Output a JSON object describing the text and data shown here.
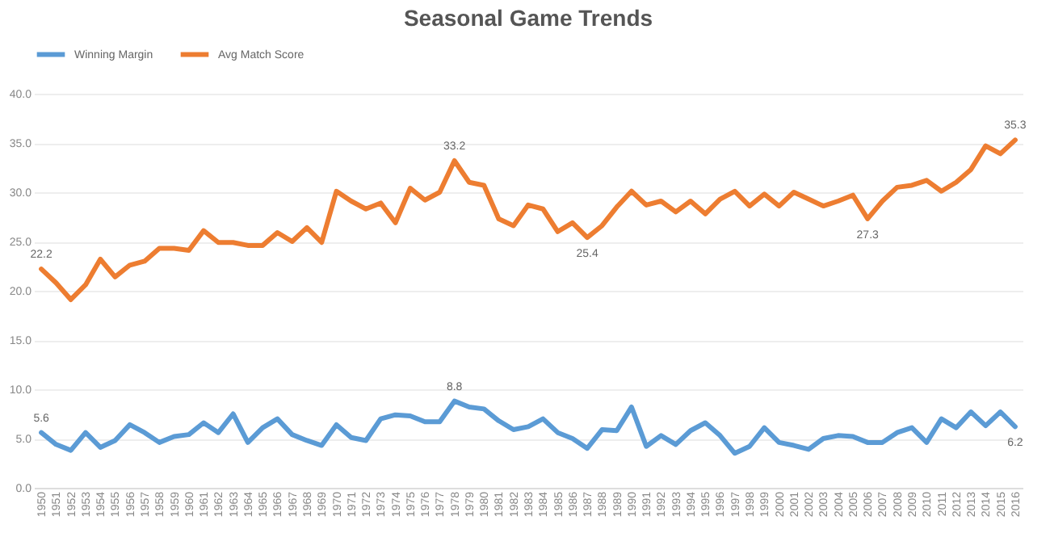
{
  "chart_data": {
    "type": "line",
    "title": "Seasonal Game Trends",
    "categories": [
      "1950",
      "1951",
      "1952",
      "1953",
      "1954",
      "1955",
      "1956",
      "1957",
      "1958",
      "1959",
      "1960",
      "1961",
      "1962",
      "1963",
      "1964",
      "1965",
      "1966",
      "1967",
      "1968",
      "1969",
      "1970",
      "1971",
      "1972",
      "1973",
      "1974",
      "1975",
      "1976",
      "1977",
      "1978",
      "1979",
      "1980",
      "1981",
      "1982",
      "1983",
      "1984",
      "1985",
      "1986",
      "1987",
      "1988",
      "1989",
      "1990",
      "1991",
      "1992",
      "1993",
      "1994",
      "1995",
      "1996",
      "1997",
      "1998",
      "1999",
      "2000",
      "2001",
      "2002",
      "2003",
      "2004",
      "2005",
      "2006",
      "2007",
      "2008",
      "2009",
      "2010",
      "2011",
      "2012",
      "2013",
      "2014",
      "2015",
      "2016"
    ],
    "series": [
      {
        "name": "Winning Margin",
        "color": "#5b9bd5",
        "values": [
          5.6,
          4.4,
          3.8,
          5.6,
          4.1,
          4.8,
          6.4,
          5.6,
          4.6,
          5.2,
          5.4,
          6.6,
          5.6,
          7.5,
          4.6,
          6.1,
          7.0,
          5.4,
          4.8,
          4.3,
          6.4,
          5.1,
          4.8,
          7.0,
          7.4,
          7.3,
          6.7,
          6.7,
          8.8,
          8.2,
          8.0,
          6.8,
          5.9,
          6.2,
          7.0,
          5.6,
          5.0,
          4.0,
          5.9,
          5.8,
          8.2,
          4.2,
          5.3,
          4.4,
          5.8,
          6.6,
          5.3,
          3.5,
          4.2,
          6.1,
          4.6,
          4.3,
          3.9,
          5.0,
          5.3,
          5.2,
          4.6,
          4.6,
          5.6,
          6.1,
          4.6,
          7.0,
          6.1,
          7.7,
          6.3,
          7.7,
          6.2
        ],
        "value_labels": [
          "5.6",
          null,
          null,
          null,
          null,
          null,
          null,
          null,
          null,
          null,
          null,
          null,
          null,
          null,
          null,
          null,
          null,
          null,
          null,
          null,
          null,
          null,
          null,
          null,
          null,
          null,
          null,
          null,
          "8.8",
          null,
          null,
          null,
          null,
          null,
          null,
          null,
          null,
          null,
          null,
          null,
          null,
          null,
          null,
          null,
          null,
          null,
          null,
          null,
          null,
          null,
          null,
          null,
          null,
          null,
          null,
          null,
          null,
          null,
          null,
          null,
          null,
          null,
          null,
          null,
          null,
          null,
          "6.2"
        ]
      },
      {
        "name": "Avg Match Score",
        "color": "#ed7d31",
        "values": [
          22.2,
          20.8,
          19.1,
          20.6,
          23.2,
          21.4,
          22.6,
          23.0,
          24.3,
          24.3,
          24.1,
          26.1,
          24.9,
          24.9,
          24.6,
          24.6,
          25.9,
          25.0,
          26.4,
          24.9,
          30.1,
          29.1,
          28.3,
          28.9,
          26.9,
          30.4,
          29.2,
          30.0,
          33.2,
          31.0,
          30.7,
          27.3,
          26.6,
          28.7,
          28.3,
          26.0,
          26.9,
          25.4,
          26.6,
          28.5,
          30.1,
          28.7,
          29.1,
          28.0,
          29.1,
          27.8,
          29.3,
          30.1,
          28.6,
          29.8,
          28.6,
          30.0,
          29.3,
          28.6,
          29.1,
          29.7,
          27.3,
          29.1,
          30.5,
          30.7,
          31.2,
          30.1,
          31.0,
          32.3,
          34.7,
          33.9,
          35.3
        ],
        "value_labels": [
          "22.2",
          null,
          null,
          null,
          null,
          null,
          null,
          null,
          null,
          null,
          null,
          null,
          null,
          null,
          null,
          null,
          null,
          null,
          null,
          null,
          null,
          null,
          null,
          null,
          null,
          null,
          null,
          null,
          "33.2",
          null,
          null,
          null,
          null,
          null,
          null,
          null,
          null,
          "25.4",
          null,
          null,
          null,
          null,
          null,
          null,
          null,
          null,
          null,
          null,
          null,
          null,
          null,
          null,
          null,
          null,
          null,
          null,
          "27.3",
          null,
          null,
          null,
          null,
          null,
          null,
          null,
          null,
          null,
          "35.3"
        ]
      }
    ],
    "ylim": [
      0,
      40
    ],
    "yticks": [
      {
        "value": 0,
        "label": "0.0"
      },
      {
        "value": 5,
        "label": "5.0"
      },
      {
        "value": 10,
        "label": "10.0"
      },
      {
        "value": 15,
        "label": "15.0"
      },
      {
        "value": 20,
        "label": "20.0"
      },
      {
        "value": 25,
        "label": "25.0"
      },
      {
        "value": 30,
        "label": "30.0"
      },
      {
        "value": 35,
        "label": "35.0"
      },
      {
        "value": 40,
        "label": "40.0"
      }
    ],
    "grid": "y",
    "legend": "top",
    "marker": "none",
    "line_style": "solid"
  }
}
